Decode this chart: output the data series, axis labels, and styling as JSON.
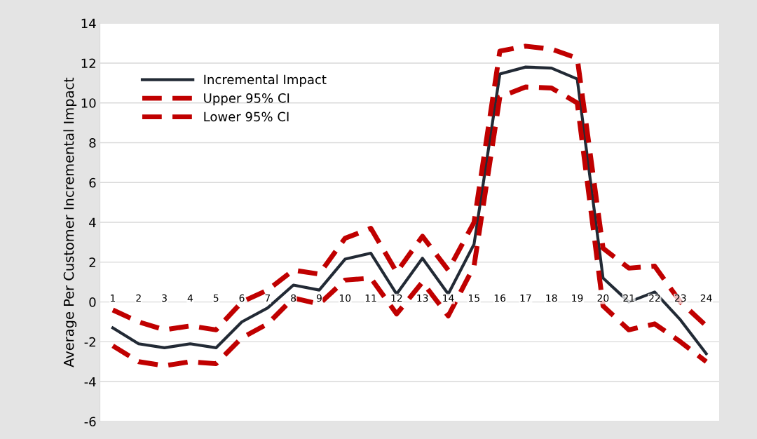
{
  "chart_data": {
    "type": "line",
    "ylabel": "Average Per Customer Incremental Impact",
    "categories": [
      "1",
      "2",
      "3",
      "4",
      "5",
      "6",
      "7",
      "8",
      "9",
      "10",
      "11",
      "12",
      "13",
      "14",
      "15",
      "16",
      "17",
      "18",
      "19",
      "20",
      "21",
      "22",
      "23",
      "24"
    ],
    "series": [
      {
        "name": "Incremental Impact",
        "color": "#222a35",
        "line_style": "solid",
        "values": [
          -1.3,
          -2.1,
          -2.3,
          -2.1,
          -2.3,
          -1.0,
          -0.3,
          0.85,
          0.6,
          2.15,
          2.45,
          0.4,
          2.2,
          0.4,
          2.9,
          11.45,
          11.8,
          11.75,
          11.2,
          1.2,
          0.0,
          0.5,
          -0.9,
          -2.6
        ]
      },
      {
        "name": "Upper 95% CI",
        "color": "#c00000",
        "line_style": "dashed",
        "values": [
          -0.4,
          -1.0,
          -1.4,
          -1.2,
          -1.4,
          0.0,
          0.6,
          1.6,
          1.4,
          3.2,
          3.7,
          1.5,
          3.3,
          1.6,
          4.0,
          12.6,
          12.85,
          12.7,
          12.25,
          2.7,
          1.7,
          1.8,
          0.0,
          -1.2
        ]
      },
      {
        "name": "Lower 95% CI",
        "color": "#c00000",
        "line_style": "dashed",
        "values": [
          -2.2,
          -3.0,
          -3.2,
          -3.0,
          -3.1,
          -1.8,
          -1.1,
          0.2,
          -0.1,
          1.1,
          1.2,
          -0.6,
          1.0,
          -0.7,
          1.8,
          10.3,
          10.8,
          10.75,
          10.0,
          -0.2,
          -1.4,
          -1.1,
          -2.0,
          -3.0
        ]
      }
    ],
    "ylim": [
      -6,
      14
    ],
    "yticks": [
      -6,
      -4,
      -2,
      0,
      2,
      4,
      6,
      8,
      10,
      12,
      14
    ],
    "grid": "y",
    "legend": "top left",
    "marker": "none"
  }
}
